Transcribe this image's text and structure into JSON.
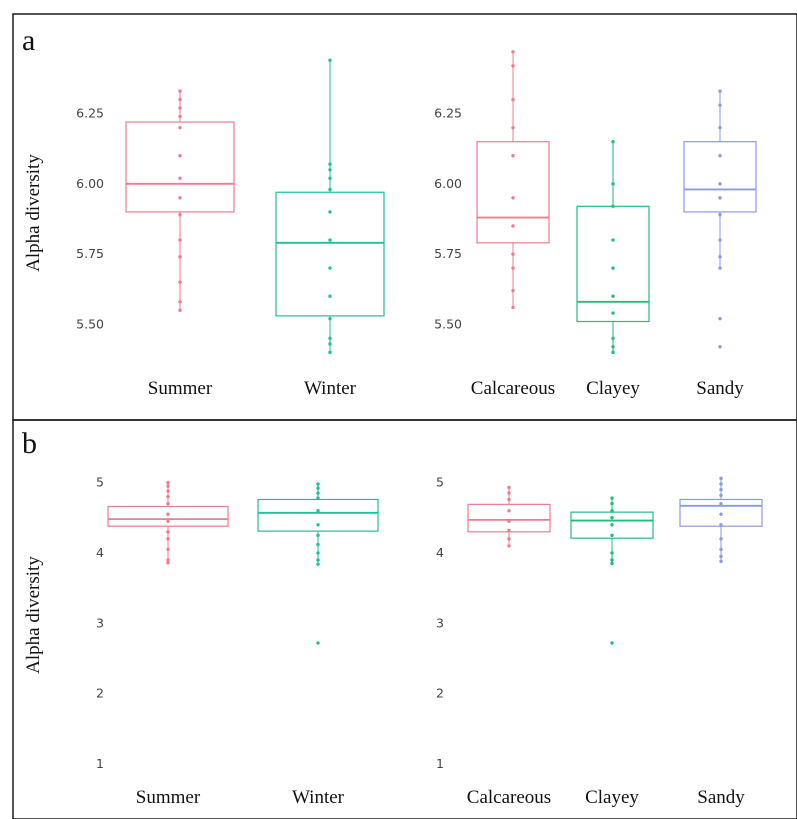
{
  "colors": {
    "Summer": "#f07b8c",
    "Winter": "#1fbf9a",
    "Calcareous": "#f07b8c",
    "Clayey": "#1fbf7a",
    "Sandy": "#8a9ae8"
  },
  "panels": [
    {
      "letter": "a",
      "ylabel": "Alpha diversity"
    },
    {
      "letter": "b",
      "ylabel": "Alpha diversity"
    }
  ],
  "chart_data": [
    {
      "type": "box",
      "panel": "a",
      "subplot": "season",
      "ylabel": "Alpha diversity",
      "yticks": [
        5.5,
        5.75,
        6.0,
        6.25
      ],
      "ytick_labels": [
        "5.50",
        "5.75",
        "6.00",
        "6.25"
      ],
      "ylim": [
        5.38,
        6.48
      ],
      "categories": [
        "Summer",
        "Winter"
      ],
      "boxes": [
        {
          "name": "Summer",
          "q1": 5.9,
          "median": 6.0,
          "q3": 6.22,
          "whisker_low": 5.55,
          "whisker_high": 6.33,
          "points": [
            6.33,
            6.3,
            6.27,
            6.24,
            6.2,
            6.1,
            6.02,
            5.95,
            5.89,
            5.8,
            5.74,
            5.65,
            5.58,
            5.55
          ]
        },
        {
          "name": "Winter",
          "q1": 5.53,
          "median": 5.79,
          "q3": 5.97,
          "whisker_low": 5.4,
          "whisker_high": 6.44,
          "points": [
            6.44,
            6.07,
            6.05,
            6.02,
            5.98,
            5.9,
            5.8,
            5.7,
            5.6,
            5.52,
            5.45,
            5.43,
            5.4
          ]
        }
      ]
    },
    {
      "type": "box",
      "panel": "a",
      "subplot": "soil",
      "ylabel": "",
      "yticks": [
        5.5,
        5.75,
        6.0,
        6.25
      ],
      "ytick_labels": [
        "5.50",
        "5.75",
        "6.00",
        "6.25"
      ],
      "ylim": [
        5.38,
        6.48
      ],
      "categories": [
        "Calcareous",
        "Clayey",
        "Sandy"
      ],
      "boxes": [
        {
          "name": "Calcareous",
          "q1": 5.79,
          "median": 5.88,
          "q3": 6.15,
          "whisker_low": 5.56,
          "whisker_high": 6.47,
          "points": [
            6.47,
            6.42,
            6.3,
            6.2,
            6.1,
            5.95,
            5.85,
            5.75,
            5.7,
            5.62,
            5.56
          ]
        },
        {
          "name": "Clayey",
          "q1": 5.51,
          "median": 5.58,
          "q3": 5.92,
          "whisker_low": 5.4,
          "whisker_high": 6.15,
          "points": [
            6.15,
            6.0,
            5.92,
            5.8,
            5.7,
            5.6,
            5.54,
            5.45,
            5.42,
            5.4
          ]
        },
        {
          "name": "Sandy",
          "q1": 5.9,
          "median": 5.98,
          "q3": 6.15,
          "whisker_low": 5.7,
          "whisker_high": 6.33,
          "points": [
            6.33,
            6.28,
            6.2,
            6.1,
            6.0,
            5.95,
            5.89,
            5.8,
            5.74,
            5.7,
            5.52,
            5.42
          ]
        }
      ]
    },
    {
      "type": "box",
      "panel": "b",
      "subplot": "season",
      "ylabel": "Alpha diversity",
      "yticks": [
        1,
        2,
        3,
        4,
        5
      ],
      "ytick_labels": [
        "1",
        "2",
        "3",
        "4",
        "5"
      ],
      "ylim": [
        0.8,
        5.25
      ],
      "categories": [
        "Summer",
        "Winter"
      ],
      "boxes": [
        {
          "name": "Summer",
          "q1": 4.38,
          "median": 4.48,
          "q3": 4.66,
          "whisker_low": 3.86,
          "whisker_high": 5.0,
          "points": [
            5.0,
            4.95,
            4.88,
            4.8,
            4.7,
            4.55,
            4.45,
            4.3,
            4.2,
            4.05,
            3.9,
            3.86
          ]
        },
        {
          "name": "Winter",
          "q1": 4.31,
          "median": 4.57,
          "q3": 4.76,
          "whisker_low": 3.84,
          "whisker_high": 4.98,
          "points": [
            4.98,
            4.92,
            4.85,
            4.78,
            4.6,
            4.4,
            4.25,
            4.12,
            4.0,
            3.9,
            3.84,
            2.72
          ]
        }
      ]
    },
    {
      "type": "box",
      "panel": "b",
      "subplot": "soil",
      "ylabel": "",
      "yticks": [
        1,
        2,
        3,
        4,
        5
      ],
      "ytick_labels": [
        "1",
        "2",
        "3",
        "4",
        "5"
      ],
      "ylim": [
        0.8,
        5.25
      ],
      "categories": [
        "Calcareous",
        "Clayey",
        "Sandy"
      ],
      "boxes": [
        {
          "name": "Calcareous",
          "q1": 4.3,
          "median": 4.47,
          "q3": 4.69,
          "whisker_low": 4.1,
          "whisker_high": 4.93,
          "points": [
            4.93,
            4.85,
            4.76,
            4.6,
            4.45,
            4.32,
            4.2,
            4.1
          ]
        },
        {
          "name": "Clayey",
          "q1": 4.21,
          "median": 4.46,
          "q3": 4.58,
          "whisker_low": 3.85,
          "whisker_high": 4.78,
          "points": [
            4.78,
            4.7,
            4.6,
            4.5,
            4.4,
            4.25,
            4.0,
            3.9,
            3.85,
            2.72
          ]
        },
        {
          "name": "Sandy",
          "q1": 4.38,
          "median": 4.67,
          "q3": 4.76,
          "whisker_low": 3.88,
          "whisker_high": 5.06,
          "points": [
            5.06,
            4.98,
            4.9,
            4.82,
            4.7,
            4.55,
            4.4,
            4.2,
            4.05,
            3.95,
            3.88
          ]
        }
      ]
    }
  ]
}
